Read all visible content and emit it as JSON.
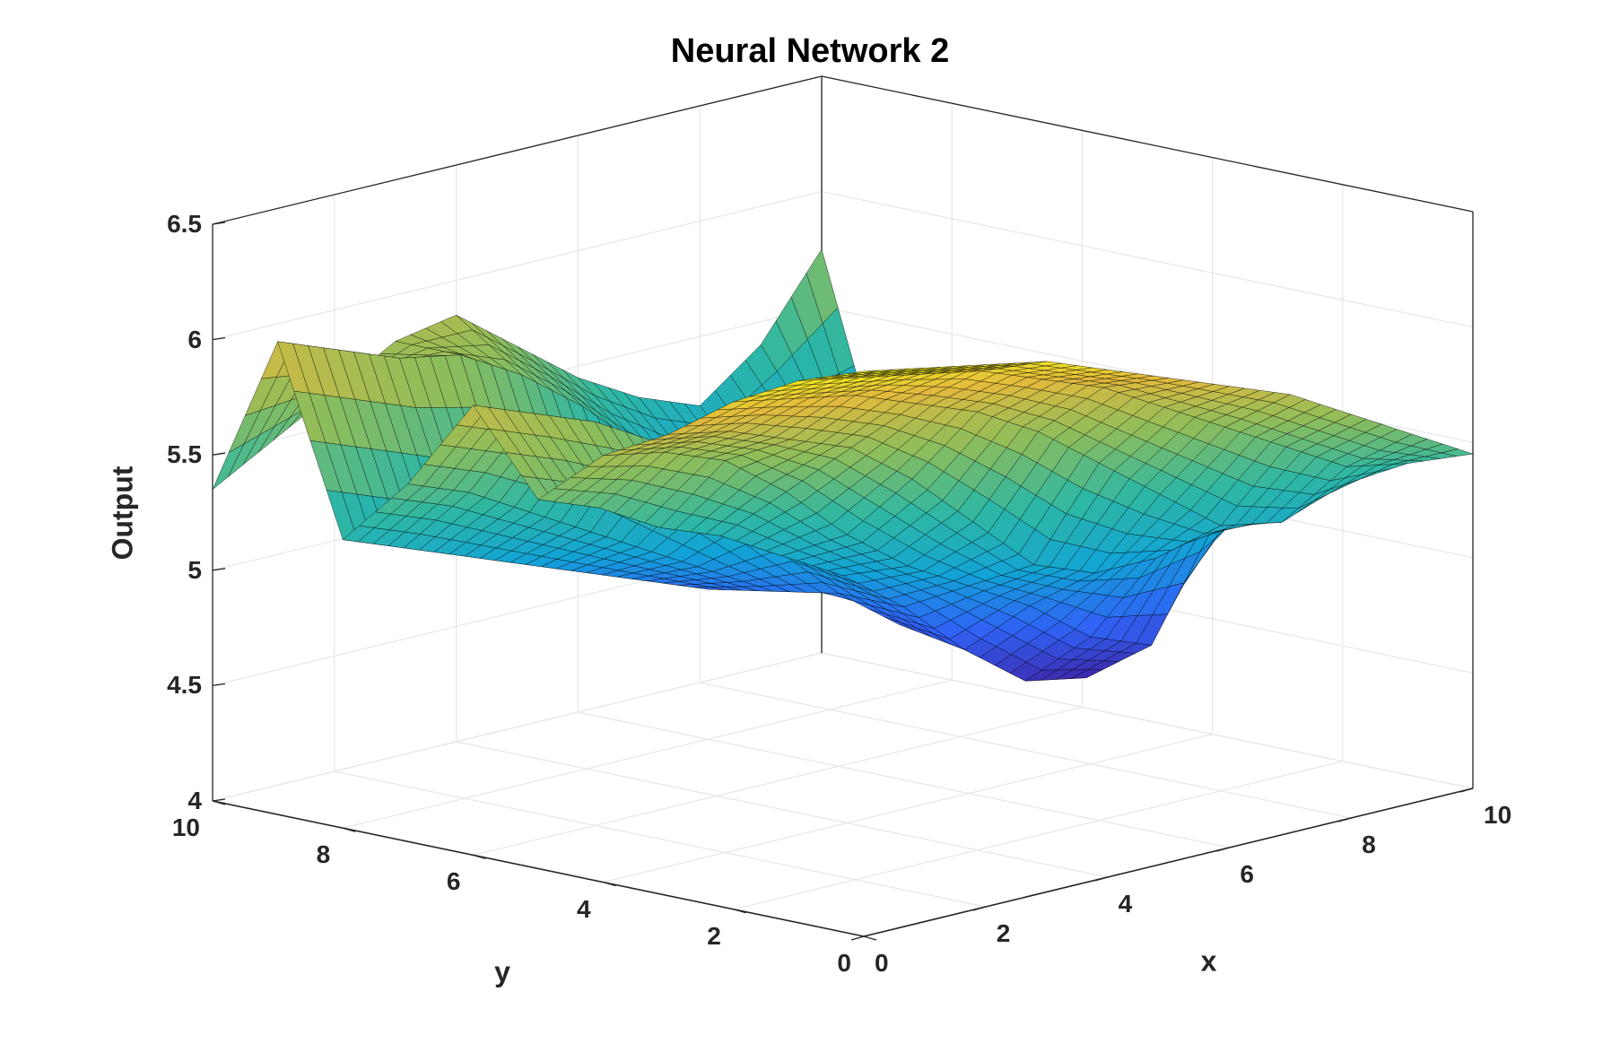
{
  "chart_data": {
    "type": "surface",
    "title": "Neural Network 2",
    "xlabel": "x",
    "ylabel": "y",
    "zlabel": "Output",
    "xlim": [
      0,
      10
    ],
    "ylim": [
      0,
      10
    ],
    "zlim": [
      4,
      6.5
    ],
    "x_ticks": [
      "0",
      "2",
      "4",
      "6",
      "8",
      "10"
    ],
    "y_ticks": [
      "0",
      "2",
      "4",
      "6",
      "8",
      "10"
    ],
    "z_ticks": [
      "4",
      "4.5",
      "5",
      "5.5",
      "6",
      "6.5"
    ],
    "grid": true,
    "colormap": "parula",
    "colormap_stops": [
      "#3e26a8",
      "#2f63f5",
      "#12a4d6",
      "#2eb7a4",
      "#8dbd5b",
      "#e2ba3d",
      "#f9fb15"
    ],
    "mesh_edge_color": "#000000",
    "x": [
      0,
      1,
      2,
      3,
      4,
      5,
      6,
      7,
      8,
      9,
      10
    ],
    "y": [
      0,
      1,
      2,
      3,
      4,
      5,
      6,
      7,
      8,
      9,
      10
    ],
    "z": [
      [
        6.45,
        6.4,
        6.35,
        6.3,
        6.2,
        6.1,
        6.0,
        5.9,
        5.75,
        5.6,
        5.45
      ],
      [
        6.35,
        6.3,
        6.25,
        6.2,
        6.1,
        6.0,
        5.85,
        5.7,
        5.55,
        5.4,
        5.35
      ],
      [
        6.2,
        6.15,
        6.1,
        6.0,
        5.9,
        5.75,
        5.55,
        5.35,
        5.15,
        5.1,
        5.2
      ],
      [
        6.0,
        5.95,
        5.85,
        5.75,
        5.55,
        5.3,
        5.05,
        4.95,
        4.95,
        5.05,
        5.1
      ],
      [
        5.85,
        5.8,
        5.7,
        5.5,
        5.25,
        5.05,
        4.9,
        4.75,
        4.55,
        4.45,
        5.0
      ],
      [
        5.6,
        5.5,
        5.35,
        5.25,
        5.1,
        4.95,
        4.75,
        4.5,
        4.3,
        4.25,
        4.9
      ],
      [
        5.95,
        5.85,
        5.75,
        5.6,
        5.3,
        5.0,
        4.75,
        4.55,
        4.5,
        4.8,
        4.95
      ],
      [
        5.55,
        5.45,
        5.3,
        5.15,
        5.0,
        4.85,
        4.7,
        4.8,
        5.05,
        5.2,
        4.95
      ],
      [
        5.25,
        5.15,
        5.05,
        4.95,
        4.85,
        4.75,
        4.65,
        4.6,
        4.8,
        5.3,
        4.85
      ],
      [
        6.05,
        5.95,
        5.85,
        5.8,
        5.65,
        5.45,
        5.2,
        5.0,
        4.9,
        5.0,
        4.8
      ],
      [
        5.35,
        5.5,
        5.65,
        5.8,
        5.85,
        5.65,
        5.45,
        5.3,
        5.2,
        5.4,
        5.75
      ]
    ]
  }
}
